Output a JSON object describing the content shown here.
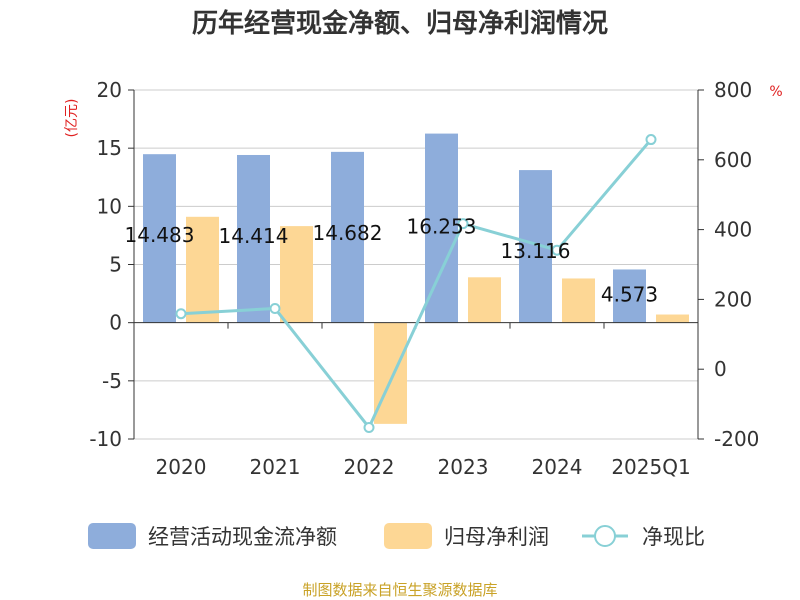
{
  "chart_data": {
    "type": "bar",
    "title": "历年经营现金净额、归母净利润情况",
    "categories": [
      "2020",
      "2021",
      "2022",
      "2023",
      "2024",
      "2025Q1"
    ],
    "series": [
      {
        "name": "经营活动现金流净额",
        "type": "bar",
        "axis": "left",
        "color": "#8eaddb",
        "values": [
          14.483,
          14.414,
          14.682,
          16.253,
          13.116,
          4.573
        ],
        "labels": [
          "14.483",
          "14.414",
          "14.682",
          "16.253",
          "13.116",
          "4.573"
        ]
      },
      {
        "name": "归母净利润",
        "type": "bar",
        "axis": "left",
        "color": "#fdd795",
        "values": [
          9.1,
          8.3,
          -8.7,
          3.9,
          3.8,
          0.7
        ]
      },
      {
        "name": "净现比",
        "type": "line",
        "axis": "right",
        "color": "#88d0d6",
        "values": [
          159,
          174,
          -167,
          417,
          341,
          658
        ]
      }
    ],
    "y_left": {
      "unit": "(亿元)",
      "min": -10,
      "max": 20,
      "ticks": [
        20,
        15,
        10,
        5,
        0,
        -5,
        -10
      ]
    },
    "y_right": {
      "unit": "%",
      "min": -200,
      "max": 800,
      "ticks": [
        800,
        600,
        400,
        200,
        0,
        -200
      ]
    },
    "grid": true,
    "legend_position": "bottom"
  },
  "footer": {
    "source": "制图数据来自恒生聚源数据库"
  }
}
